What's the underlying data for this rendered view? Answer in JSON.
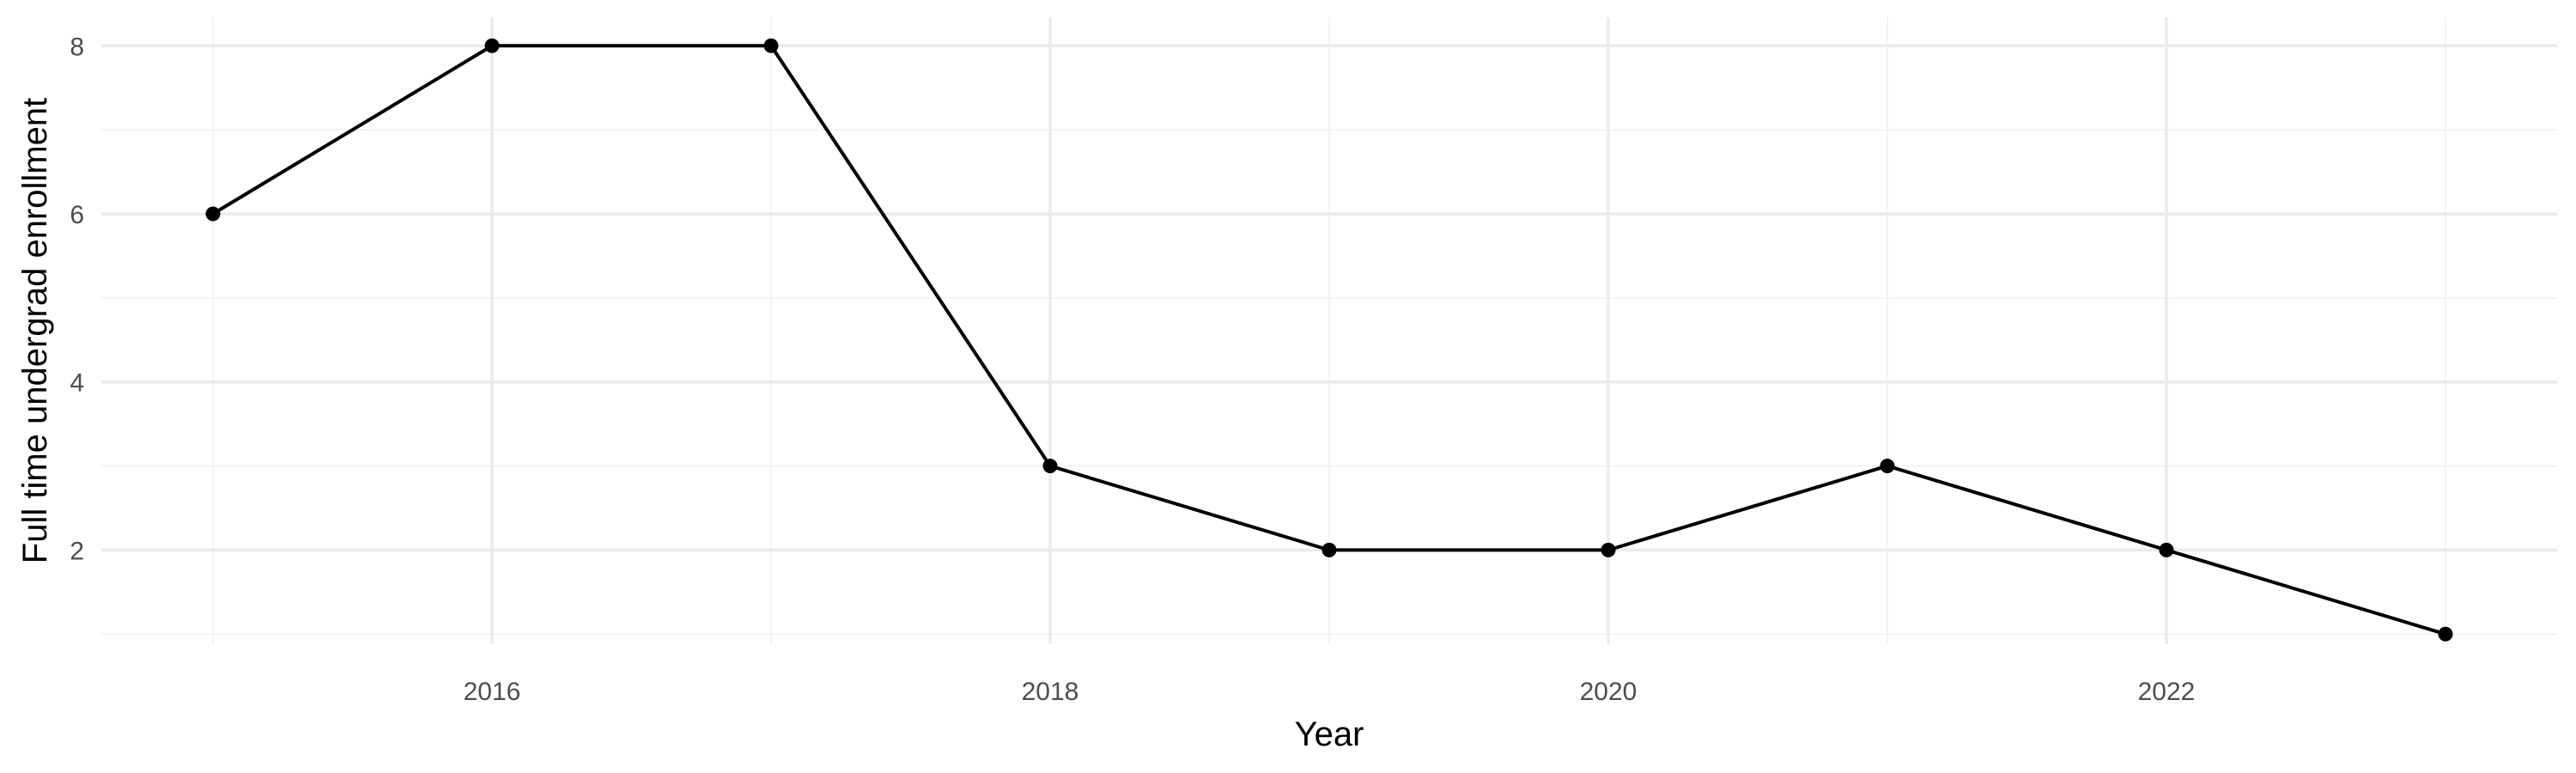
{
  "chart_data": {
    "type": "line",
    "title": "",
    "xlabel": "Year",
    "ylabel": "Full time undergrad enrollment",
    "x": [
      2015,
      2016,
      2017,
      2018,
      2019,
      2020,
      2021,
      2022,
      2023
    ],
    "series": [
      {
        "values": [
          6,
          8,
          8,
          3,
          2,
          2,
          3,
          2,
          1
        ],
        "color": "#000000"
      }
    ],
    "xlim": [
      2014.6,
      2023.4
    ],
    "ylim": [
      0.88,
      8.34
    ],
    "x_ticks": [
      2016,
      2018,
      2020,
      2022
    ],
    "x_tick_labels": [
      "2016",
      "2018",
      "2020",
      "2022"
    ],
    "y_ticks": [
      2,
      4,
      6,
      8
    ],
    "y_tick_labels": [
      "2",
      "4",
      "6",
      "8"
    ],
    "x_minor_ticks": [
      2015,
      2017,
      2019,
      2021,
      2023
    ],
    "y_minor_ticks": [
      1,
      3,
      5,
      7
    ],
    "grid": true,
    "legend": "none",
    "background": "#ffffff"
  }
}
